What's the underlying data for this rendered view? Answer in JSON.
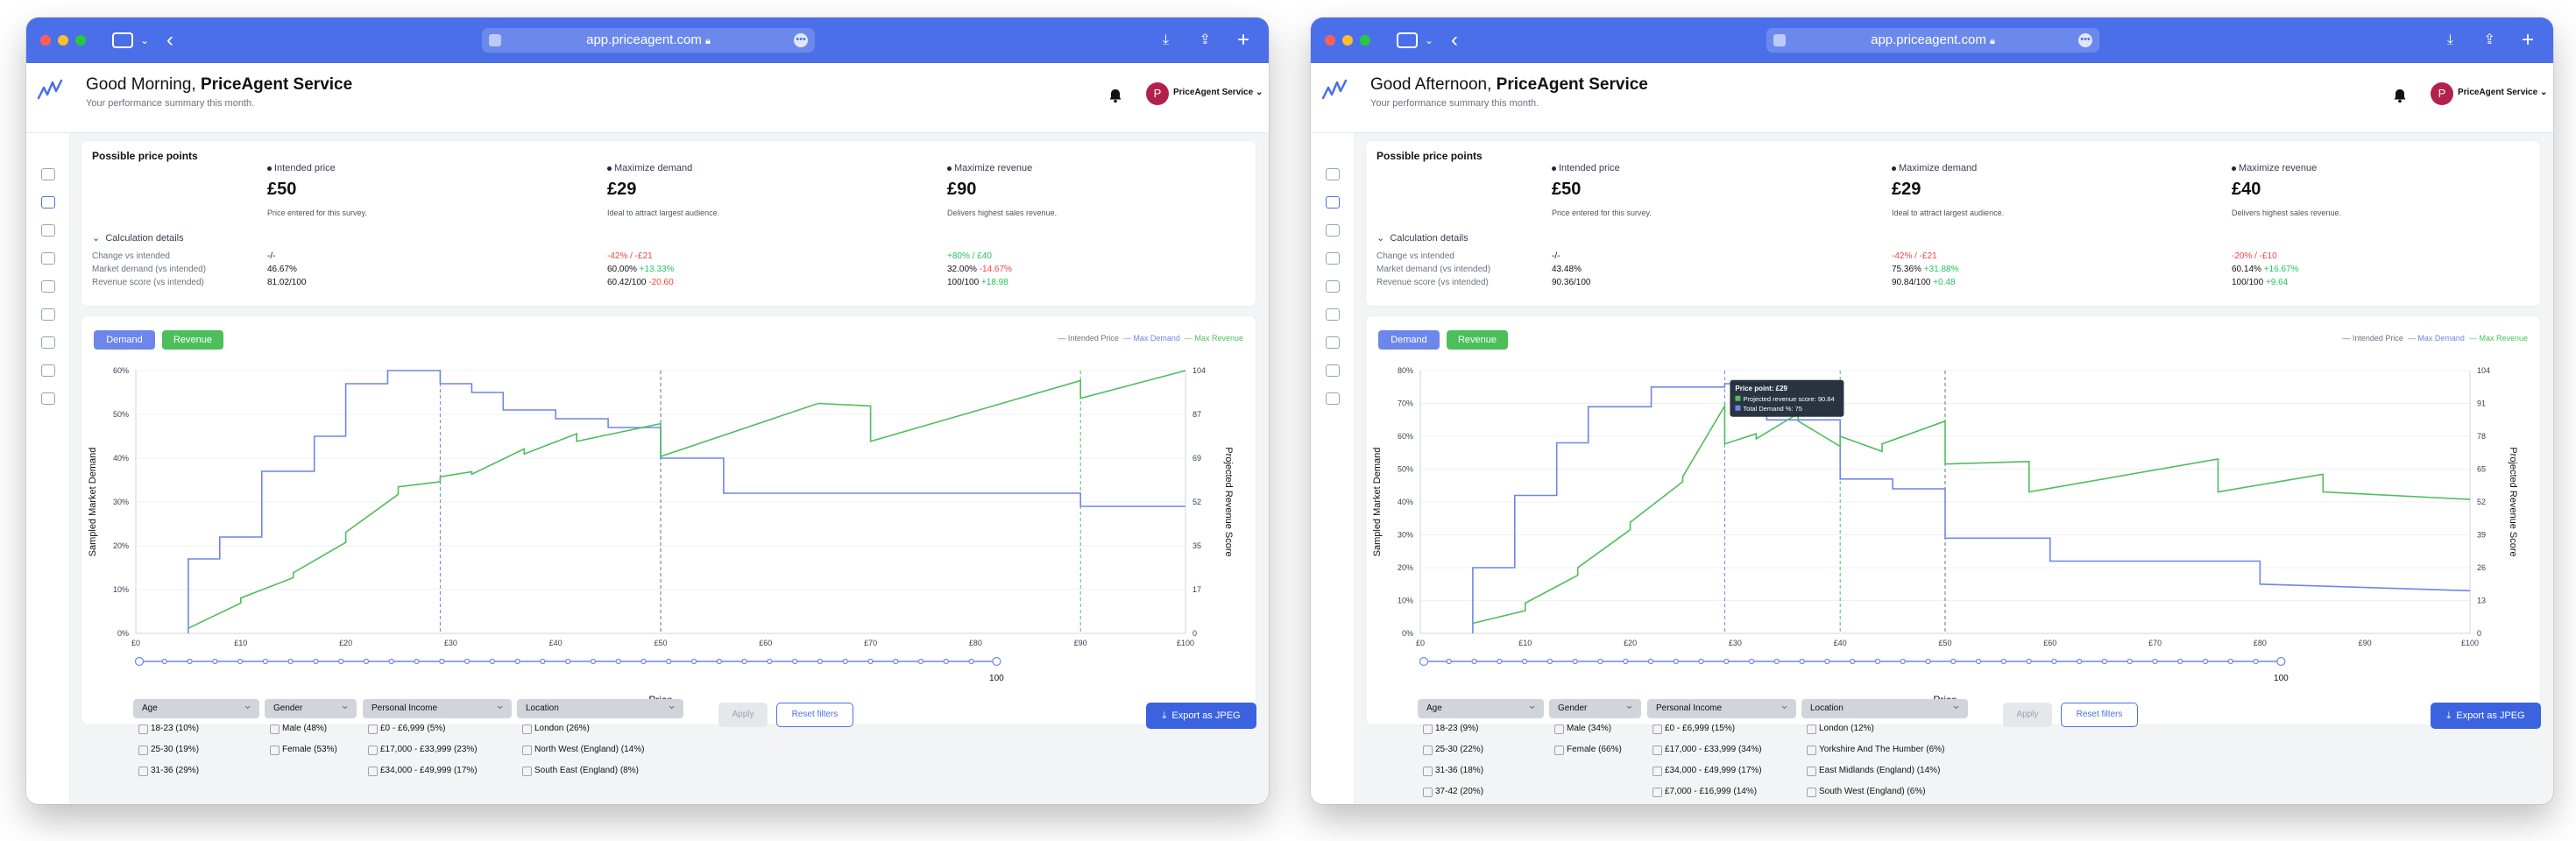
{
  "browser": {
    "url": "app.priceagent.com"
  },
  "user": {
    "name": "PriceAgent Service",
    "initial": "P"
  },
  "subtitle": "Your performance summary this month.",
  "colors": {
    "primary": "#4b6fe8",
    "demand": "#6d86ec",
    "revenue": "#4cbf5b",
    "red": "#ef4444",
    "green": "#22c55e"
  },
  "sidebar_icons": [
    "grid-icon",
    "box-icon",
    "box-icon",
    "box-icon",
    "box-icon",
    "document-icon",
    "clock-icon",
    "chart-icon",
    "gear-icon"
  ],
  "common": {
    "price_points_title": "Possible price points",
    "intended_label": "Intended price",
    "maxdemand_label": "Maximize demand",
    "maxrevenue_label": "Maximize revenue",
    "intended_desc": "Price entered for this survey.",
    "maxdemand_desc": "Ideal to attract largest audience.",
    "maxrevenue_desc": "Delivers highest sales revenue.",
    "calc_label": "Calculation details",
    "row1": "Change vs intended",
    "row2": "Market demand (vs intended)",
    "row3": "Revenue score (vs intended)",
    "demand_btn": "Demand",
    "revenue_btn": "Revenue",
    "legend": [
      "Intended Price",
      "Max Demand",
      "Max Revenue"
    ],
    "ylabel_left": "Sampled Market Demand",
    "ylabel_right": "Projected Revenue Score",
    "xlabel": "Price",
    "apply": "Apply",
    "reset": "Reset filters",
    "export": "Export as JPEG",
    "filters": {
      "age": "Age",
      "gender": "Gender",
      "income": "Personal Income",
      "location": "Location"
    }
  },
  "panels": [
    {
      "greeting": "Good Morning, ",
      "intended": {
        "value": "£50",
        "change": "-/-",
        "demand": "46.67%",
        "revenue": "81.02/100"
      },
      "maxdemand": {
        "value": "£29",
        "change": "-42% / -£21",
        "demand": "60.00%",
        "demand_delta": "+13.33%",
        "revenue": "60.42/100",
        "revenue_delta": "-20.60"
      },
      "maxrevenue": {
        "value": "£90",
        "change": "+80% / £40",
        "demand": "32.00%",
        "demand_delta": "-14.67%",
        "revenue": "100/100",
        "revenue_delta": "+18.98"
      },
      "slider_label": "100",
      "filter_items": {
        "age": [
          "18-23 (10%)",
          "25-30 (19%)",
          "31-36 (29%)"
        ],
        "gender": [
          "Male (48%)",
          "Female (53%)"
        ],
        "income": [
          "£0 - £6,999 (5%)",
          "£17,000 - £33,999 (23%)",
          "£34,000 - £49,999 (17%)"
        ],
        "location": [
          "London (26%)",
          "North West (England) (14%)",
          "South East (England) (8%)"
        ]
      }
    },
    {
      "greeting": "Good Afternoon, ",
      "intended": {
        "value": "£50",
        "change": "-/-",
        "demand": "43.48%",
        "revenue": "90.36/100"
      },
      "maxdemand": {
        "value": "£29",
        "change": "-42% / -£21",
        "demand": "75.36%",
        "demand_delta": "+31.88%",
        "revenue": "90.84/100",
        "revenue_delta": "+0.48"
      },
      "maxrevenue": {
        "value": "£40",
        "change": "-20% / -£10",
        "demand": "60.14%",
        "demand_delta": "+16.67%",
        "revenue": "100/100",
        "revenue_delta": "+9.64"
      },
      "slider_label": "100",
      "tooltip": {
        "title": "Price point: £29",
        "line1": "Projected revenue score: 90.84",
        "line2": "Total Demand %: 75"
      },
      "filter_items": {
        "age": [
          "18-23 (9%)",
          "25-30 (22%)",
          "31-36 (18%)",
          "37-42 (20%)"
        ],
        "gender": [
          "Male (34%)",
          "Female (66%)"
        ],
        "income": [
          "£0 - £6,999 (15%)",
          "£17,000 - £33,999 (34%)",
          "£34,000 - £49,999 (17%)",
          "£7,000 - £16,999 (14%)"
        ],
        "location": [
          "London (12%)",
          "Yorkshire And The Humber (6%)",
          "East Midlands (England) (14%)",
          "South West (England) (6%)"
        ]
      }
    }
  ],
  "chart_data": [
    {
      "type": "line",
      "title": "",
      "xlabel": "Price",
      "ylabel": "Sampled Market Demand",
      "y2label": "Projected Revenue Score",
      "x_ticks": [
        "£0",
        "£10",
        "£20",
        "£30",
        "£40",
        "£50",
        "£60",
        "£70",
        "£80",
        "£90",
        "£100"
      ],
      "y_ticks": [
        "0%",
        "10%",
        "20%",
        "30%",
        "40%",
        "50%",
        "60%"
      ],
      "y2_ticks": [
        "0",
        "17",
        "35",
        "52",
        "69",
        "87",
        "104"
      ],
      "xlim": [
        0,
        100
      ],
      "ylim": [
        0,
        60
      ],
      "y2lim": [
        0,
        104
      ],
      "vlines": [
        29,
        50,
        90
      ],
      "series": [
        {
          "name": "Demand",
          "axis": "left",
          "x": [
            5,
            5,
            8,
            8,
            12,
            12,
            17,
            17,
            20,
            20,
            24,
            24,
            29,
            29,
            32,
            32,
            35,
            35,
            40,
            40,
            45,
            45,
            50,
            50,
            56,
            56,
            70,
            70,
            90,
            90,
            100
          ],
          "y": [
            0,
            17,
            17,
            22,
            22,
            37,
            37,
            45,
            45,
            57,
            57,
            60,
            60,
            57,
            57,
            55,
            55,
            51,
            51,
            49,
            49,
            47,
            47,
            40,
            40,
            32,
            32,
            32,
            32,
            29,
            29
          ]
        },
        {
          "name": "Revenue",
          "axis": "right",
          "x": [
            5,
            10,
            10,
            15,
            15,
            20,
            20,
            25,
            25,
            29,
            29,
            32,
            32,
            37,
            37,
            42,
            42,
            50,
            50,
            65,
            70,
            70,
            90,
            90,
            100
          ],
          "y": [
            2,
            12,
            14,
            22,
            24,
            36,
            40,
            55,
            58,
            60,
            62,
            64,
            63,
            73,
            71,
            79,
            76,
            83,
            70,
            91,
            90,
            76,
            100,
            93,
            104
          ]
        }
      ],
      "slider_value": 100
    },
    {
      "type": "line",
      "title": "",
      "xlabel": "Price",
      "ylabel": "Sampled Market Demand",
      "y2label": "Projected Revenue Score",
      "x_ticks": [
        "£0",
        "£10",
        "£20",
        "£30",
        "£40",
        "£50",
        "£60",
        "£70",
        "£80",
        "£90",
        "£100"
      ],
      "y_ticks": [
        "0%",
        "10%",
        "20%",
        "30%",
        "40%",
        "50%",
        "60%",
        "70%",
        "80%"
      ],
      "y2_ticks": [
        "0",
        "13",
        "26",
        "39",
        "52",
        "65",
        "78",
        "91",
        "104"
      ],
      "xlim": [
        0,
        100
      ],
      "ylim": [
        0,
        80
      ],
      "y2lim": [
        0,
        104
      ],
      "vlines": [
        29,
        40,
        50
      ],
      "series": [
        {
          "name": "Demand",
          "axis": "left",
          "x": [
            5,
            5,
            9,
            9,
            13,
            13,
            16,
            16,
            22,
            22,
            29,
            29,
            33,
            33,
            40,
            40,
            45,
            45,
            50,
            50,
            60,
            60,
            80,
            80,
            100
          ],
          "y": [
            0,
            20,
            20,
            42,
            42,
            58,
            58,
            69,
            69,
            75,
            75,
            76,
            76,
            65,
            65,
            47,
            47,
            44,
            44,
            29,
            29,
            22,
            22,
            15,
            13
          ]
        },
        {
          "name": "Revenue",
          "axis": "right",
          "x": [
            5,
            10,
            10,
            15,
            15,
            20,
            20,
            25,
            25,
            29,
            29,
            32,
            32,
            36,
            36,
            40,
            40,
            44,
            44,
            50,
            50,
            58,
            58,
            76,
            76,
            86,
            86,
            100
          ],
          "y": [
            4,
            9,
            12,
            23,
            26,
            41,
            44,
            60,
            62,
            90,
            75,
            79,
            77,
            87,
            84,
            74,
            78,
            72,
            75,
            84,
            67,
            68,
            56,
            69,
            56,
            63,
            56,
            53
          ]
        }
      ],
      "slider_value": 100
    }
  ]
}
